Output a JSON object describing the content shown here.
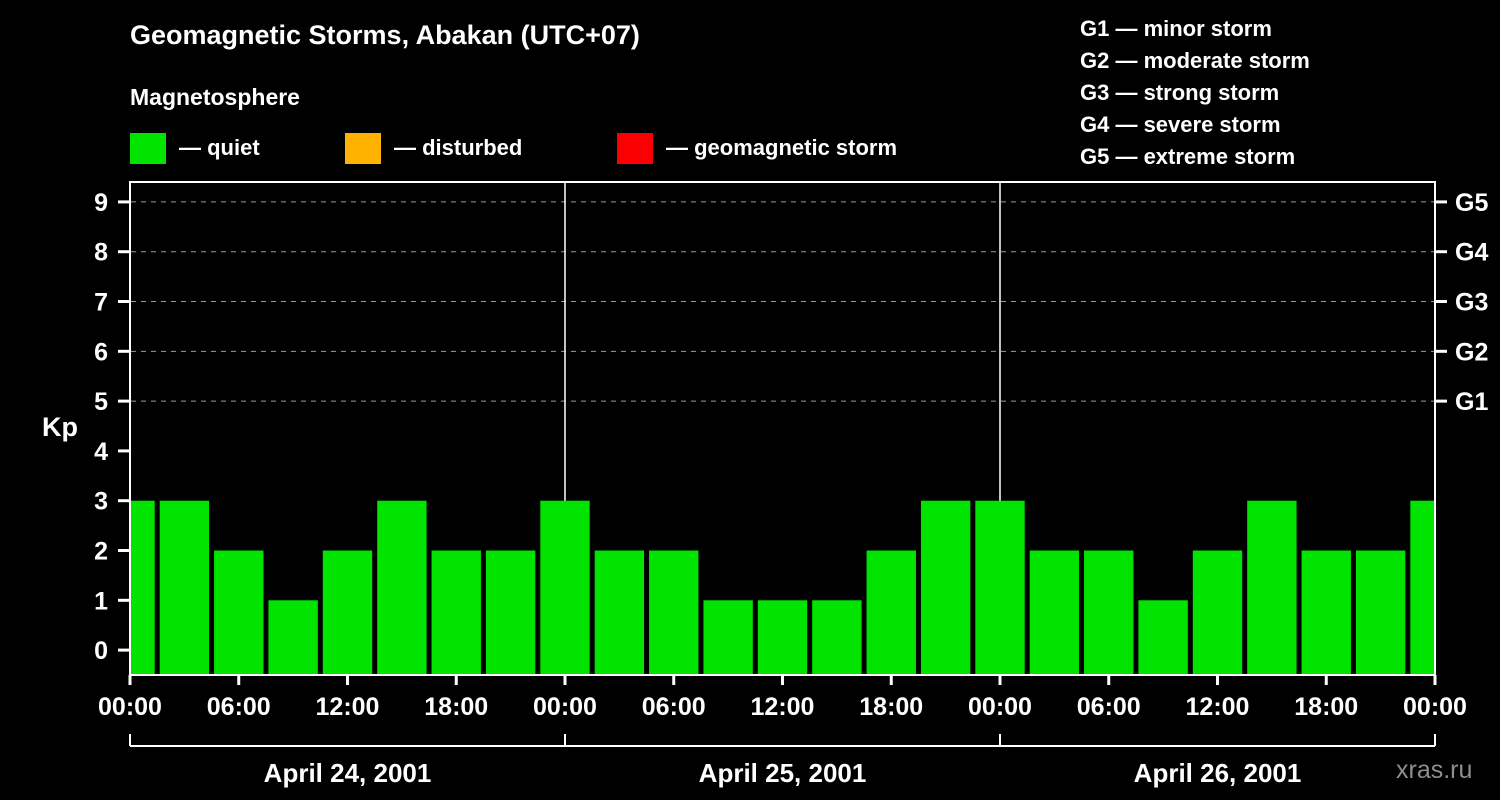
{
  "header": {
    "title": "Geomagnetic Storms, Abakan (UTC+07)",
    "subtitle": "Magnetosphere",
    "watermark": "xras.ru"
  },
  "legend": {
    "items": [
      {
        "label": "— quiet",
        "color": "#00e400"
      },
      {
        "label": "— disturbed",
        "color": "#ffb300"
      },
      {
        "label": "— geomagnetic storm",
        "color": "#fb0000"
      }
    ],
    "g_scale": [
      {
        "label": "G1 — minor storm"
      },
      {
        "label": "G2 — moderate storm"
      },
      {
        "label": "G3 — strong storm"
      },
      {
        "label": "G4 — severe storm"
      },
      {
        "label": "G5 — extreme storm"
      }
    ]
  },
  "chart_data": {
    "type": "bar",
    "title": "Geomagnetic Storms, Abakan (UTC+07)",
    "ylabel": "Kp",
    "ylim": [
      -0.5,
      9.4
    ],
    "y_ticks": [
      0,
      1,
      2,
      3,
      4,
      5,
      6,
      7,
      8,
      9
    ],
    "x_tick_labels": [
      "00:00",
      "06:00",
      "12:00",
      "18:00",
      "00:00",
      "06:00",
      "12:00",
      "18:00",
      "00:00",
      "06:00",
      "12:00",
      "18:00",
      "00:00"
    ],
    "hours_per_bar": 3,
    "days": [
      {
        "date": "April 24, 2001",
        "kp": [
          3,
          3,
          2,
          1,
          2,
          3,
          2,
          2
        ]
      },
      {
        "date": "April 25, 2001",
        "kp": [
          3,
          2,
          2,
          1,
          1,
          1,
          2,
          3
        ]
      },
      {
        "date": "April 26, 2001",
        "kp": [
          3,
          2,
          2,
          1,
          2,
          3,
          2,
          2
        ]
      }
    ],
    "trailing_kp": 3,
    "grid_levels": [
      5,
      6,
      7,
      8,
      9
    ],
    "right_axis": [
      {
        "kp": 5,
        "label": "G1"
      },
      {
        "kp": 6,
        "label": "G2"
      },
      {
        "kp": 7,
        "label": "G3"
      },
      {
        "kp": 8,
        "label": "G4"
      },
      {
        "kp": 9,
        "label": "G5"
      }
    ],
    "colors": {
      "quiet": "#00e400",
      "disturbed": "#ffb300",
      "storm": "#fb0000"
    },
    "thresholds": {
      "disturbed": 4,
      "storm": 5
    },
    "legend_position": "top-right",
    "grid": "dashed-horizontal-at-G-levels"
  }
}
